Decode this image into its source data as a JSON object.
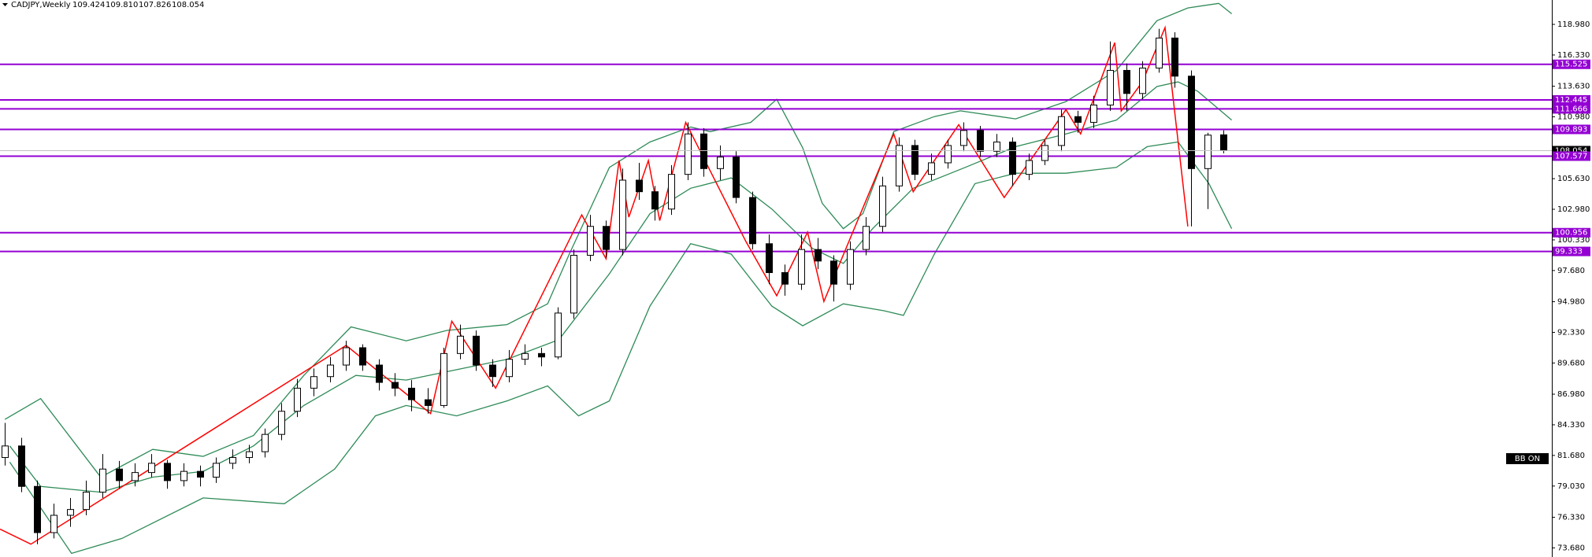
{
  "chart_data": {
    "type": "candlestick",
    "header": {
      "symbol": "CADJPY,Weekly",
      "quote": [
        "109.424",
        "109.810",
        "107.826",
        "108.054"
      ]
    },
    "indicator_label": "BB ON",
    "xlim": [
      -0.3,
      95.2
    ],
    "ylim": [
      72.89,
      121.09
    ],
    "yticks": [
      {
        "value": 118.98,
        "label": "118.980"
      },
      {
        "value": 116.33,
        "label": "116.330"
      },
      {
        "value": 113.63,
        "label": "113.630"
      },
      {
        "value": 110.98,
        "label": "110.980"
      },
      {
        "value": 105.63,
        "label": "105.630"
      },
      {
        "value": 102.98,
        "label": "102.980"
      },
      {
        "value": 100.33,
        "label": "100.330"
      },
      {
        "value": 97.68,
        "label": "97.680"
      },
      {
        "value": 94.98,
        "label": "94.980"
      },
      {
        "value": 92.33,
        "label": "92.330"
      },
      {
        "value": 89.68,
        "label": "89.680"
      },
      {
        "value": 86.98,
        "label": "86.980"
      },
      {
        "value": 84.33,
        "label": "84.330"
      },
      {
        "value": 81.68,
        "label": "81.680"
      },
      {
        "value": 79.03,
        "label": "79.030"
      },
      {
        "value": 76.33,
        "label": "76.330"
      },
      {
        "value": 73.68,
        "label": "73.680"
      }
    ],
    "candles": {
      "up_color": "#ffffff",
      "down_color": "#000000",
      "open": [
        81.5,
        82.5,
        79,
        75,
        76.5,
        77,
        78.5,
        80.5,
        79.5,
        80.2,
        81,
        79.5,
        80.3,
        79.8,
        81,
        81.5,
        82,
        83.5,
        85.5,
        87.5,
        88.5,
        89.5,
        91,
        89.5,
        88,
        87.5,
        86.5,
        86,
        90.5,
        92,
        89.5,
        88.5,
        90,
        90.5,
        90.2,
        94,
        99,
        101.5,
        99.5,
        105.5,
        104.5,
        103,
        106,
        109.5,
        106.5,
        107.5,
        104,
        100,
        97.5,
        96.5,
        99.5,
        98.5,
        96.5,
        99.5,
        101.5,
        105,
        108.5,
        106,
        107,
        108.5,
        109.8,
        108,
        108.8,
        106,
        107.2,
        108.5,
        111,
        110.5,
        112,
        115,
        113,
        115.2,
        117.8,
        114.5,
        106.5,
        109.424
      ],
      "high": [
        84.5,
        83.2,
        79.5,
        77.5,
        78,
        79.5,
        81.8,
        81.2,
        81,
        81.8,
        81.3,
        81,
        80.8,
        81.5,
        82.2,
        82.6,
        84,
        86.2,
        88.3,
        89.2,
        90.2,
        91.6,
        91.3,
        90,
        88.8,
        88.2,
        87.5,
        91,
        93,
        92.5,
        90,
        90.8,
        91.3,
        91,
        94.5,
        99.5,
        102.5,
        102,
        106.5,
        107,
        105,
        106.8,
        110.5,
        110,
        108.5,
        108,
        104.5,
        100.8,
        98.2,
        100.8,
        100.5,
        99,
        100.2,
        102.3,
        105.8,
        109.2,
        109,
        107.8,
        109,
        110.5,
        110.2,
        109.5,
        109.2,
        107.8,
        109,
        111.6,
        111.5,
        112.8,
        117.5,
        115.6,
        115.8,
        118.6,
        118.3,
        115,
        109.6,
        109.81
      ],
      "low": [
        80.8,
        78.5,
        74,
        74.5,
        75.5,
        76.5,
        78,
        78.8,
        79,
        79.8,
        78.8,
        79,
        79,
        79.3,
        80.5,
        81,
        81.5,
        83,
        85,
        86.8,
        88,
        89,
        89,
        87.3,
        86.8,
        85.5,
        85.3,
        85.8,
        90,
        89,
        87.6,
        88,
        89.5,
        89.4,
        90,
        93.5,
        98.5,
        98.8,
        99,
        103.8,
        102,
        102.5,
        105.5,
        105.8,
        105.5,
        103.5,
        99.5,
        96.5,
        95.5,
        96,
        97.8,
        95,
        96,
        99,
        101,
        104.5,
        105.5,
        105.5,
        106.5,
        108,
        107.5,
        107.5,
        105,
        105.5,
        106.8,
        108,
        109.6,
        110,
        111.5,
        111.5,
        112.5,
        114.8,
        113.5,
        101.5,
        103,
        107.826
      ],
      "close": [
        82.5,
        79,
        75,
        76.5,
        77,
        78.5,
        80.5,
        79.5,
        80.2,
        81,
        79.5,
        80.3,
        79.8,
        81,
        81.5,
        82,
        83.5,
        85.5,
        87.5,
        88.5,
        89.5,
        91,
        89.5,
        88,
        87.5,
        86.5,
        86,
        90.5,
        92,
        89.5,
        88.5,
        90,
        90.5,
        90.2,
        94,
        99,
        101.5,
        99.5,
        105.5,
        104.5,
        103,
        106,
        109.5,
        106.5,
        107.5,
        104,
        100,
        97.5,
        96.5,
        99.5,
        98.5,
        96.5,
        99.5,
        101.5,
        105,
        108.5,
        106,
        107,
        108.5,
        109.8,
        108,
        108.8,
        106,
        107.2,
        108.5,
        111,
        110.5,
        112,
        115,
        113,
        115.2,
        117.8,
        114.5,
        106.5,
        109.4,
        108.054
      ]
    },
    "bands": [
      {
        "color": "#2e8b57",
        "x": [
          0,
          2.2,
          5.9,
          9.1,
          12.2,
          15.3,
          18.4,
          21.3,
          24.7,
          27.2,
          30.9,
          33.4,
          34.7,
          37.2,
          39.7,
          42.2,
          43.4,
          45.9,
          47.5,
          49.1,
          50.3,
          51.6,
          52.8,
          54.7,
          57.2,
          58.8,
          62.2,
          65.3,
          68.4,
          70.9,
          72.8,
          74.7,
          75.5
        ],
        "values": [
          84.8,
          86.6,
          79.8,
          82.2,
          81.6,
          83.4,
          88.6,
          92.8,
          91.6,
          92.5,
          93,
          94.8,
          99,
          106.6,
          108.8,
          110.1,
          109.7,
          110.5,
          112.5,
          108.3,
          103.5,
          101.3,
          102.6,
          109.7,
          111,
          111.5,
          110.8,
          112.3,
          115,
          119.3,
          120.4,
          120.8,
          119.9
        ]
      },
      {
        "color": "#2e8b57",
        "x": [
          0.3,
          2.2,
          5.9,
          9.1,
          12.2,
          15.3,
          18.4,
          21.6,
          24.7,
          27.8,
          30.9,
          34.1,
          37.2,
          39.7,
          42.2,
          44.7,
          47.2,
          49.7,
          51.6,
          53.4,
          55.9,
          59.1,
          62.2,
          65.3,
          68.4,
          70.9,
          72.2,
          73.4,
          75.5
        ],
        "values": [
          82.5,
          79,
          78.5,
          79.8,
          80.3,
          82.5,
          86,
          88.6,
          88.2,
          89.1,
          90,
          91.7,
          97.4,
          102.6,
          104.8,
          105.7,
          103,
          99.6,
          98.3,
          101.3,
          104.8,
          106.6,
          108.4,
          109.5,
          110.7,
          113.6,
          114,
          113.2,
          110.7
        ]
      },
      {
        "color": "#2e8b57",
        "x": [
          0.3,
          4.1,
          7.2,
          12.2,
          17.2,
          20.3,
          22.8,
          24.7,
          27.8,
          30.9,
          33.4,
          35.3,
          37.2,
          39.7,
          42.2,
          44.7,
          47.2,
          49.1,
          51.6,
          54.1,
          55.3,
          57.2,
          59.7,
          62.2,
          65.3,
          68.4,
          70.3,
          72.2,
          74.1,
          75.5
        ],
        "values": [
          81.1,
          73.2,
          74.5,
          78,
          77.5,
          80.5,
          85.1,
          86,
          85.1,
          86.4,
          87.7,
          85.1,
          86.4,
          94.6,
          100,
          99.1,
          94.6,
          92.9,
          94.8,
          94.2,
          93.8,
          99.1,
          105.2,
          106.1,
          106.1,
          106.6,
          108.4,
          108.8,
          105.2,
          101.3
        ]
      }
    ],
    "zigzag": {
      "color": "#ff0000",
      "x": [
        -0.3,
        1.6,
        21,
        26.2,
        27.5,
        30.2,
        35.5,
        37,
        37.8,
        38.4,
        39.6,
        40.3,
        41.9,
        45.6,
        47.5,
        49.4,
        50.4,
        54.7,
        55.9,
        58.7,
        61.5,
        65.3,
        66.2,
        68.3,
        68.7,
        70,
        71.4,
        72.8
      ],
      "values": [
        75.3,
        74,
        91.2,
        85.3,
        93.3,
        87.5,
        102.5,
        98.7,
        107.2,
        102.3,
        107.2,
        102,
        110.5,
        100.2,
        95.5,
        101,
        95,
        109.5,
        104.5,
        110.3,
        104,
        111.6,
        109.5,
        117.4,
        111.5,
        114,
        118.7,
        101.5
      ]
    },
    "levels": {
      "color": "#9400d3",
      "values": [
        115.525,
        112.445,
        111.666,
        109.893,
        107.577,
        100.956,
        99.333
      ]
    }
  }
}
